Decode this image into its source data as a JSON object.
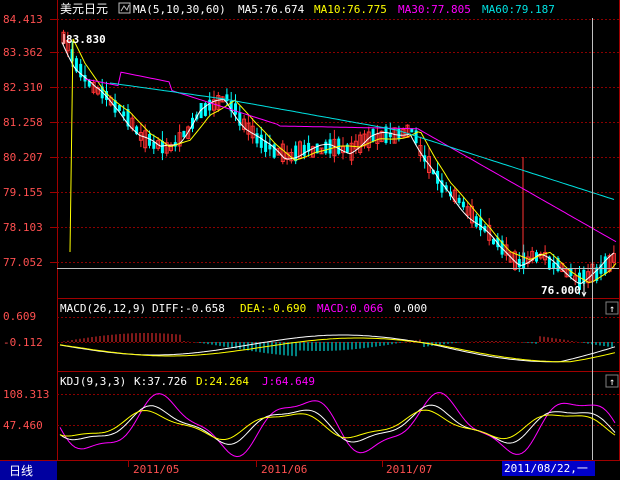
{
  "header": {
    "symbol": "美元日元",
    "ma_params": "MA(5,10,30,60)",
    "ma5": "MA5:76.674",
    "ma10": "MA10:76.775",
    "ma30": "MA30:77.805",
    "ma60": "MA60:79.187"
  },
  "price_axis": {
    "ticks": [
      "84.413",
      "83.362",
      "82.310",
      "81.258",
      "80.207",
      "79.155",
      "78.103",
      "77.052"
    ]
  },
  "annotations": {
    "high": "83.830",
    "low": "76.000"
  },
  "macd_panel": {
    "title": "MACD(26,12,9)",
    "diff": "DIFF:-0.658",
    "dea": "DEA:-0.690",
    "macd": "MACD:0.066",
    "extra": "0.000",
    "ticks": [
      "0.609",
      "-0.112"
    ]
  },
  "kdj_panel": {
    "title": "KDJ(9,3,3)",
    "k": "K:37.726",
    "d": "D:24.264",
    "j": "J:64.649",
    "ticks": [
      "108.313",
      "47.460"
    ]
  },
  "bottom_bar": {
    "period": "日线",
    "months": [
      "2011/05",
      "2011/06",
      "2011/07"
    ],
    "current_date": "2011/08/22,一"
  },
  "panel_button": "↑",
  "colors": {
    "up": "#ff3232",
    "down": "#00ffff",
    "ma5": "#ffffff",
    "ma10": "#ffff00",
    "ma30": "#ff00ff",
    "ma60": "#00e0e0",
    "border": "#a00000",
    "axis_text": "#ff5050"
  }
}
